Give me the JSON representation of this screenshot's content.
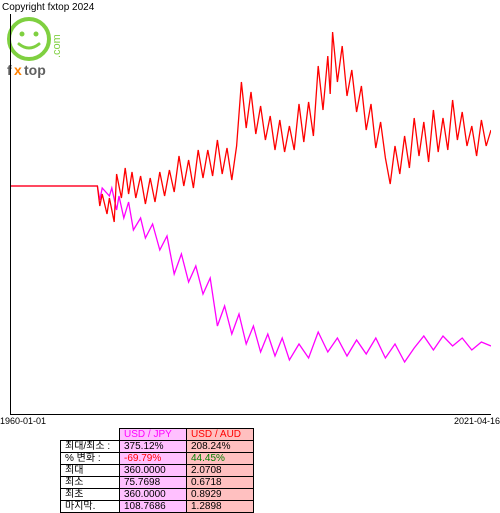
{
  "copyright": "Copyright fxtop 2024",
  "logo": {
    "text_top": "fxtop",
    "text_side": ".com"
  },
  "xaxis": {
    "start": "1960-01-01",
    "end": "2021-04-16"
  },
  "series": [
    {
      "name": "USD / JPY",
      "color": "#ff00ff",
      "header_bg": "#ffc0ff",
      "points": [
        [
          0,
          0.57
        ],
        [
          0.18,
          0.57
        ],
        [
          0.185,
          0.535
        ],
        [
          0.19,
          0.565
        ],
        [
          0.205,
          0.545
        ],
        [
          0.21,
          0.565
        ],
        [
          0.22,
          0.51
        ],
        [
          0.225,
          0.545
        ],
        [
          0.235,
          0.49
        ],
        [
          0.245,
          0.53
        ],
        [
          0.255,
          0.46
        ],
        [
          0.27,
          0.49
        ],
        [
          0.28,
          0.44
        ],
        [
          0.295,
          0.475
        ],
        [
          0.31,
          0.41
        ],
        [
          0.325,
          0.445
        ],
        [
          0.34,
          0.35
        ],
        [
          0.355,
          0.4
        ],
        [
          0.37,
          0.33
        ],
        [
          0.385,
          0.37
        ],
        [
          0.4,
          0.3
        ],
        [
          0.415,
          0.34
        ],
        [
          0.43,
          0.22
        ],
        [
          0.445,
          0.27
        ],
        [
          0.46,
          0.2
        ],
        [
          0.475,
          0.25
        ],
        [
          0.49,
          0.175
        ],
        [
          0.505,
          0.22
        ],
        [
          0.52,
          0.155
        ],
        [
          0.535,
          0.2
        ],
        [
          0.55,
          0.145
        ],
        [
          0.565,
          0.19
        ],
        [
          0.58,
          0.135
        ],
        [
          0.6,
          0.175
        ],
        [
          0.62,
          0.14
        ],
        [
          0.64,
          0.205
        ],
        [
          0.66,
          0.155
        ],
        [
          0.68,
          0.19
        ],
        [
          0.7,
          0.145
        ],
        [
          0.72,
          0.185
        ],
        [
          0.74,
          0.15
        ],
        [
          0.76,
          0.19
        ],
        [
          0.78,
          0.14
        ],
        [
          0.8,
          0.175
        ],
        [
          0.82,
          0.13
        ],
        [
          0.84,
          0.165
        ],
        [
          0.86,
          0.195
        ],
        [
          0.88,
          0.16
        ],
        [
          0.9,
          0.195
        ],
        [
          0.92,
          0.17
        ],
        [
          0.94,
          0.19
        ],
        [
          0.96,
          0.16
        ],
        [
          0.98,
          0.18
        ],
        [
          1,
          0.17
        ]
      ]
    },
    {
      "name": "USD / AUD",
      "color": "#ff0000",
      "header_bg": "#ffc0c0",
      "points": [
        [
          0,
          0.57
        ],
        [
          0.18,
          0.57
        ],
        [
          0.185,
          0.52
        ],
        [
          0.19,
          0.55
        ],
        [
          0.2,
          0.5
        ],
        [
          0.205,
          0.54
        ],
        [
          0.215,
          0.48
        ],
        [
          0.22,
          0.6
        ],
        [
          0.23,
          0.54
        ],
        [
          0.238,
          0.615
        ],
        [
          0.245,
          0.55
        ],
        [
          0.252,
          0.605
        ],
        [
          0.26,
          0.54
        ],
        [
          0.27,
          0.595
        ],
        [
          0.28,
          0.525
        ],
        [
          0.29,
          0.59
        ],
        [
          0.3,
          0.53
        ],
        [
          0.31,
          0.605
        ],
        [
          0.32,
          0.545
        ],
        [
          0.33,
          0.61
        ],
        [
          0.34,
          0.555
        ],
        [
          0.35,
          0.645
        ],
        [
          0.36,
          0.57
        ],
        [
          0.37,
          0.635
        ],
        [
          0.38,
          0.565
        ],
        [
          0.39,
          0.66
        ],
        [
          0.4,
          0.59
        ],
        [
          0.41,
          0.66
        ],
        [
          0.42,
          0.595
        ],
        [
          0.43,
          0.685
        ],
        [
          0.44,
          0.6
        ],
        [
          0.45,
          0.665
        ],
        [
          0.46,
          0.585
        ],
        [
          0.47,
          0.67
        ],
        [
          0.48,
          0.83
        ],
        [
          0.49,
          0.715
        ],
        [
          0.5,
          0.805
        ],
        [
          0.51,
          0.7
        ],
        [
          0.52,
          0.77
        ],
        [
          0.53,
          0.685
        ],
        [
          0.54,
          0.745
        ],
        [
          0.55,
          0.66
        ],
        [
          0.56,
          0.735
        ],
        [
          0.57,
          0.655
        ],
        [
          0.58,
          0.72
        ],
        [
          0.59,
          0.66
        ],
        [
          0.6,
          0.775
        ],
        [
          0.61,
          0.68
        ],
        [
          0.62,
          0.78
        ],
        [
          0.63,
          0.695
        ],
        [
          0.64,
          0.87
        ],
        [
          0.65,
          0.76
        ],
        [
          0.66,
          0.895
        ],
        [
          0.665,
          0.8
        ],
        [
          0.67,
          0.955
        ],
        [
          0.68,
          0.83
        ],
        [
          0.69,
          0.92
        ],
        [
          0.7,
          0.795
        ],
        [
          0.71,
          0.86
        ],
        [
          0.72,
          0.755
        ],
        [
          0.73,
          0.82
        ],
        [
          0.74,
          0.71
        ],
        [
          0.75,
          0.775
        ],
        [
          0.76,
          0.665
        ],
        [
          0.77,
          0.73
        ],
        [
          0.78,
          0.64
        ],
        [
          0.79,
          0.575
        ],
        [
          0.8,
          0.67
        ],
        [
          0.81,
          0.6
        ],
        [
          0.82,
          0.695
        ],
        [
          0.83,
          0.615
        ],
        [
          0.84,
          0.74
        ],
        [
          0.85,
          0.645
        ],
        [
          0.86,
          0.73
        ],
        [
          0.87,
          0.63
        ],
        [
          0.88,
          0.76
        ],
        [
          0.89,
          0.655
        ],
        [
          0.9,
          0.74
        ],
        [
          0.91,
          0.66
        ],
        [
          0.92,
          0.785
        ],
        [
          0.93,
          0.685
        ],
        [
          0.94,
          0.755
        ],
        [
          0.95,
          0.67
        ],
        [
          0.96,
          0.72
        ],
        [
          0.97,
          0.645
        ],
        [
          0.98,
          0.735
        ],
        [
          0.99,
          0.67
        ],
        [
          1,
          0.71
        ]
      ]
    }
  ],
  "table": {
    "rows": [
      {
        "label": "최대/최소 :",
        "v1": "375.12%",
        "v2": "208.24%",
        "c1": "#000",
        "c2": "#000"
      },
      {
        "label": "% 변화 :",
        "v1": "-69.79%",
        "v2": "44.45%",
        "c1": "#ff0000",
        "c2": "#008000"
      },
      {
        "label": "최대",
        "v1": "360.0000",
        "v2": "2.0708",
        "c1": "#000",
        "c2": "#000"
      },
      {
        "label": "최소",
        "v1": "75.7698",
        "v2": "0.6718",
        "c1": "#000",
        "c2": "#000"
      },
      {
        "label": "최초",
        "v1": "360.0000",
        "v2": "0.8929",
        "c1": "#000",
        "c2": "#000"
      },
      {
        "label": "마지막.",
        "v1": "108.7686",
        "v2": "1.2898",
        "c1": "#000",
        "c2": "#000"
      }
    ]
  }
}
